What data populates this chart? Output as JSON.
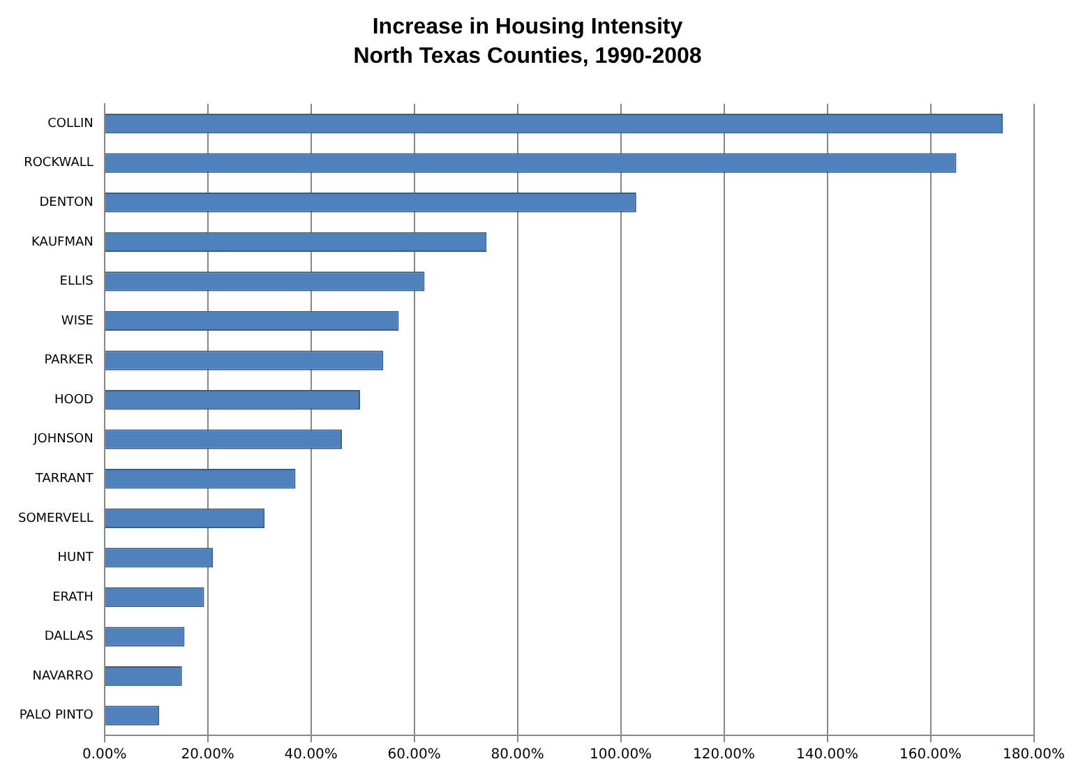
{
  "chart_data": {
    "type": "bar",
    "orientation": "horizontal",
    "title": "Increase in Housing Intensity",
    "subtitle": "North Texas Counties, 1990-2008",
    "categories": [
      "COLLIN",
      "ROCKWALL",
      "DENTON",
      "KAUFMAN",
      "ELLIS",
      "WISE",
      "PARKER",
      "HOOD",
      "JOHNSON",
      "TARRANT",
      "SOMERVELL",
      "HUNT",
      "ERATH",
      "DALLAS",
      "NAVARRO",
      "PALO PINTO"
    ],
    "values": [
      174,
      165,
      103,
      74,
      62,
      57,
      54,
      49.5,
      46,
      37,
      31,
      21,
      19.3,
      15.5,
      15,
      10.6
    ],
    "color": "#4f81bd",
    "xlim": [
      0,
      180
    ],
    "xticks": [
      {
        "value": 0,
        "label": "0.00%"
      },
      {
        "value": 20,
        "label": "20.00%"
      },
      {
        "value": 40,
        "label": "40.00%"
      },
      {
        "value": 60,
        "label": "60.00%"
      },
      {
        "value": 80,
        "label": "80.00%"
      },
      {
        "value": 100,
        "label": "100.00%"
      },
      {
        "value": 120,
        "label": "120.00%"
      },
      {
        "value": 140,
        "label": "140.00%"
      },
      {
        "value": 160,
        "label": "160.00%"
      },
      {
        "value": 180,
        "label": "180.00%"
      }
    ],
    "grid": "x"
  }
}
